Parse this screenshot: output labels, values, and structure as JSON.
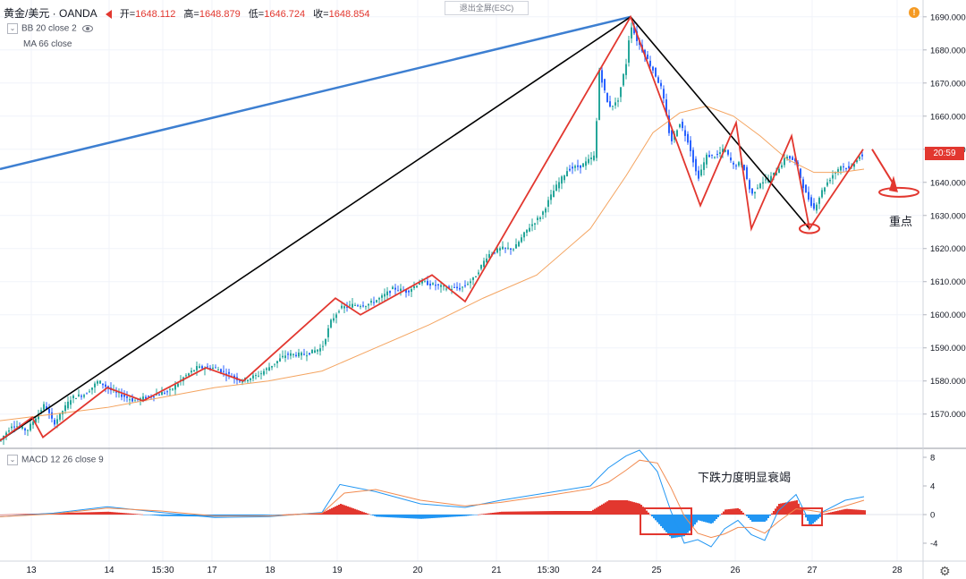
{
  "header": {
    "symbol": "黄金/美元 · OANDA",
    "open_label": "开=",
    "open": "1648.112",
    "high_label": "高=",
    "high": "1648.879",
    "low_label": "低=",
    "low": "1646.724",
    "close_label": "收=",
    "close": "1648.854",
    "exit_fullscreen": "退出全屏(ESC)"
  },
  "indicators": {
    "bb": "BB 20 close 2",
    "ma": "MA 66 close",
    "macd": "MACD 12 26 close 9"
  },
  "price_tag": {
    "price": "1648.854",
    "countdown": "20:59"
  },
  "annotations": {
    "key_point": "重点",
    "macd_note": "下跌力度明显衰竭"
  },
  "colors": {
    "up": "#26a69a",
    "down": "#2962ff",
    "zigzag": "#e2372f",
    "trend_black": "#000000",
    "trend_blue": "#3d7fd1",
    "ma": "#f4a460",
    "macd_line": "#2196f3",
    "signal_line": "#f28b50",
    "hist_pos": "#e2372f",
    "hist_neg": "#2196f3"
  },
  "chart_data": [
    {
      "type": "candlestick",
      "title": "黄金/美元",
      "y_axis": {
        "ticks": [
          "1570.000",
          "1580.000",
          "1590.000",
          "1600.000",
          "1610.000",
          "1620.000",
          "1630.000",
          "1640.000",
          "1650.000",
          "1660.000",
          "1670.000",
          "1680.000",
          "1690.000"
        ],
        "ylim": [
          1561,
          1694
        ]
      },
      "x_axis": {
        "ticks": [
          "13",
          "14",
          "15:30",
          "17",
          "18",
          "19",
          "20",
          "21",
          "15:30",
          "24",
          "25",
          "26",
          "27",
          "28"
        ]
      },
      "price_path": [
        [
          0,
          1562
        ],
        [
          14,
          1567
        ],
        [
          30,
          1565
        ],
        [
          50,
          1573
        ],
        [
          60,
          1567
        ],
        [
          80,
          1575
        ],
        [
          95,
          1576
        ],
        [
          110,
          1580
        ],
        [
          125,
          1577
        ],
        [
          150,
          1574
        ],
        [
          175,
          1576
        ],
        [
          190,
          1577
        ],
        [
          205,
          1581
        ],
        [
          220,
          1584
        ],
        [
          240,
          1584
        ],
        [
          255,
          1582
        ],
        [
          270,
          1580
        ],
        [
          290,
          1582
        ],
        [
          305,
          1585
        ],
        [
          320,
          1588
        ],
        [
          340,
          1588
        ],
        [
          360,
          1590
        ],
        [
          370,
          1598
        ],
        [
          380,
          1602
        ],
        [
          395,
          1603
        ],
        [
          410,
          1603
        ],
        [
          425,
          1605
        ],
        [
          440,
          1608
        ],
        [
          455,
          1607
        ],
        [
          470,
          1610
        ],
        [
          485,
          1609
        ],
        [
          500,
          1608
        ],
        [
          515,
          1608
        ],
        [
          530,
          1611
        ],
        [
          545,
          1618
        ],
        [
          560,
          1620
        ],
        [
          575,
          1620
        ],
        [
          590,
          1626
        ],
        [
          605,
          1630
        ],
        [
          620,
          1638
        ],
        [
          635,
          1644
        ],
        [
          650,
          1645
        ],
        [
          665,
          1648
        ],
        [
          670,
          1674
        ],
        [
          680,
          1663
        ],
        [
          690,
          1664
        ],
        [
          700,
          1676
        ],
        [
          705,
          1688
        ],
        [
          712,
          1683
        ],
        [
          720,
          1679
        ],
        [
          730,
          1674
        ],
        [
          740,
          1668
        ],
        [
          750,
          1652
        ],
        [
          760,
          1658
        ],
        [
          770,
          1652
        ],
        [
          780,
          1641
        ],
        [
          790,
          1648
        ],
        [
          800,
          1648
        ],
        [
          810,
          1650
        ],
        [
          820,
          1645
        ],
        [
          830,
          1646
        ],
        [
          840,
          1636
        ],
        [
          850,
          1640
        ],
        [
          860,
          1641
        ],
        [
          870,
          1644
        ],
        [
          880,
          1648
        ],
        [
          890,
          1646
        ],
        [
          900,
          1637
        ],
        [
          910,
          1632
        ],
        [
          920,
          1638
        ],
        [
          930,
          1642
        ],
        [
          940,
          1645
        ],
        [
          950,
          1644
        ],
        [
          960,
          1648
        ],
        [
          966,
          1647
        ]
      ],
      "ma": [
        [
          0,
          1568
        ],
        [
          60,
          1570
        ],
        [
          120,
          1572
        ],
        [
          180,
          1575
        ],
        [
          240,
          1578
        ],
        [
          300,
          1580
        ],
        [
          360,
          1583
        ],
        [
          420,
          1590
        ],
        [
          480,
          1597
        ],
        [
          540,
          1605
        ],
        [
          600,
          1612
        ],
        [
          660,
          1626
        ],
        [
          700,
          1642
        ],
        [
          730,
          1655
        ],
        [
          760,
          1661
        ],
        [
          790,
          1663
        ],
        [
          820,
          1660
        ],
        [
          850,
          1654
        ],
        [
          880,
          1647
        ],
        [
          910,
          1643
        ],
        [
          940,
          1643
        ],
        [
          966,
          1644
        ]
      ],
      "zigzag": [
        [
          0,
          1562
        ],
        [
          36,
          1569
        ],
        [
          48,
          1563
        ],
        [
          120,
          1578
        ],
        [
          160,
          1574
        ],
        [
          230,
          1584
        ],
        [
          272,
          1580
        ],
        [
          375,
          1605
        ],
        [
          403,
          1600
        ],
        [
          483,
          1612
        ],
        [
          520,
          1604
        ],
        [
          705,
          1690
        ],
        [
          783,
          1633
        ],
        [
          823,
          1658
        ],
        [
          840,
          1626
        ],
        [
          885,
          1654
        ],
        [
          905,
          1626
        ],
        [
          965,
          1650
        ]
      ],
      "trend_black": [
        [
          0,
          1562
        ],
        [
          705,
          1690
        ],
        [
          905,
          1626
        ]
      ],
      "trend_blue": [
        [
          0,
          1644
        ],
        [
          705,
          1690
        ]
      ]
    },
    {
      "type": "macd",
      "title": "MACD 12 26 close 9",
      "y_axis": {
        "ticks": [
          "8",
          "4",
          "0",
          "-4"
        ],
        "ylim": [
          -6.5,
          9
        ]
      },
      "macd": [
        [
          0,
          -0.3
        ],
        [
          60,
          0.2
        ],
        [
          120,
          1.1
        ],
        [
          180,
          0.3
        ],
        [
          240,
          -0.4
        ],
        [
          300,
          -0.3
        ],
        [
          360,
          0.3
        ],
        [
          380,
          4.2
        ],
        [
          420,
          3.2
        ],
        [
          470,
          1.5
        ],
        [
          520,
          1.0
        ],
        [
          560,
          2.0
        ],
        [
          620,
          3.2
        ],
        [
          660,
          4.0
        ],
        [
          680,
          6.5
        ],
        [
          700,
          8.2
        ],
        [
          715,
          9.0
        ],
        [
          735,
          6.0
        ],
        [
          750,
          0.5
        ],
        [
          765,
          -4.0
        ],
        [
          780,
          -3.5
        ],
        [
          795,
          -4.5
        ],
        [
          810,
          -2.0
        ],
        [
          825,
          -0.8
        ],
        [
          840,
          -2.8
        ],
        [
          855,
          -3.6
        ],
        [
          870,
          0.5
        ],
        [
          890,
          2.8
        ],
        [
          905,
          -1.0
        ],
        [
          920,
          0.4
        ],
        [
          945,
          2.0
        ],
        [
          966,
          2.5
        ]
      ],
      "signal": [
        [
          0,
          -0.3
        ],
        [
          60,
          0.1
        ],
        [
          120,
          0.9
        ],
        [
          180,
          0.5
        ],
        [
          240,
          -0.2
        ],
        [
          300,
          -0.2
        ],
        [
          360,
          0.2
        ],
        [
          385,
          3.0
        ],
        [
          420,
          3.5
        ],
        [
          470,
          2.0
        ],
        [
          520,
          1.2
        ],
        [
          560,
          1.7
        ],
        [
          620,
          2.8
        ],
        [
          660,
          3.6
        ],
        [
          680,
          4.5
        ],
        [
          700,
          6.2
        ],
        [
          715,
          7.6
        ],
        [
          735,
          7.2
        ],
        [
          750,
          3.8
        ],
        [
          765,
          -0.2
        ],
        [
          780,
          -2.6
        ],
        [
          795,
          -3.2
        ],
        [
          810,
          -2.7
        ],
        [
          825,
          -1.8
        ],
        [
          840,
          -1.8
        ],
        [
          855,
          -2.6
        ],
        [
          870,
          -1.0
        ],
        [
          890,
          0.8
        ],
        [
          905,
          0.6
        ],
        [
          920,
          0.3
        ],
        [
          945,
          1.2
        ],
        [
          966,
          2.0
        ]
      ],
      "histogram": [
        [
          0,
          0
        ],
        [
          60,
          0.2
        ],
        [
          120,
          0.4
        ],
        [
          180,
          -0.2
        ],
        [
          240,
          -0.3
        ],
        [
          300,
          -0.1
        ],
        [
          360,
          0.3
        ],
        [
          380,
          1.5
        ],
        [
          420,
          -0.3
        ],
        [
          470,
          -0.6
        ],
        [
          520,
          -0.2
        ],
        [
          560,
          0.4
        ],
        [
          620,
          0.5
        ],
        [
          660,
          0.5
        ],
        [
          680,
          2.0
        ],
        [
          700,
          2.0
        ],
        [
          715,
          1.5
        ],
        [
          735,
          -1.2
        ],
        [
          750,
          -3.3
        ],
        [
          765,
          -3.0
        ],
        [
          780,
          -0.8
        ],
        [
          795,
          -1.3
        ],
        [
          810,
          0.7
        ],
        [
          825,
          0.9
        ],
        [
          840,
          -1.0
        ],
        [
          855,
          -1.0
        ],
        [
          870,
          1.5
        ],
        [
          890,
          2.0
        ],
        [
          905,
          -1.6
        ],
        [
          920,
          0.1
        ],
        [
          945,
          0.8
        ],
        [
          966,
          0.6
        ]
      ]
    }
  ]
}
